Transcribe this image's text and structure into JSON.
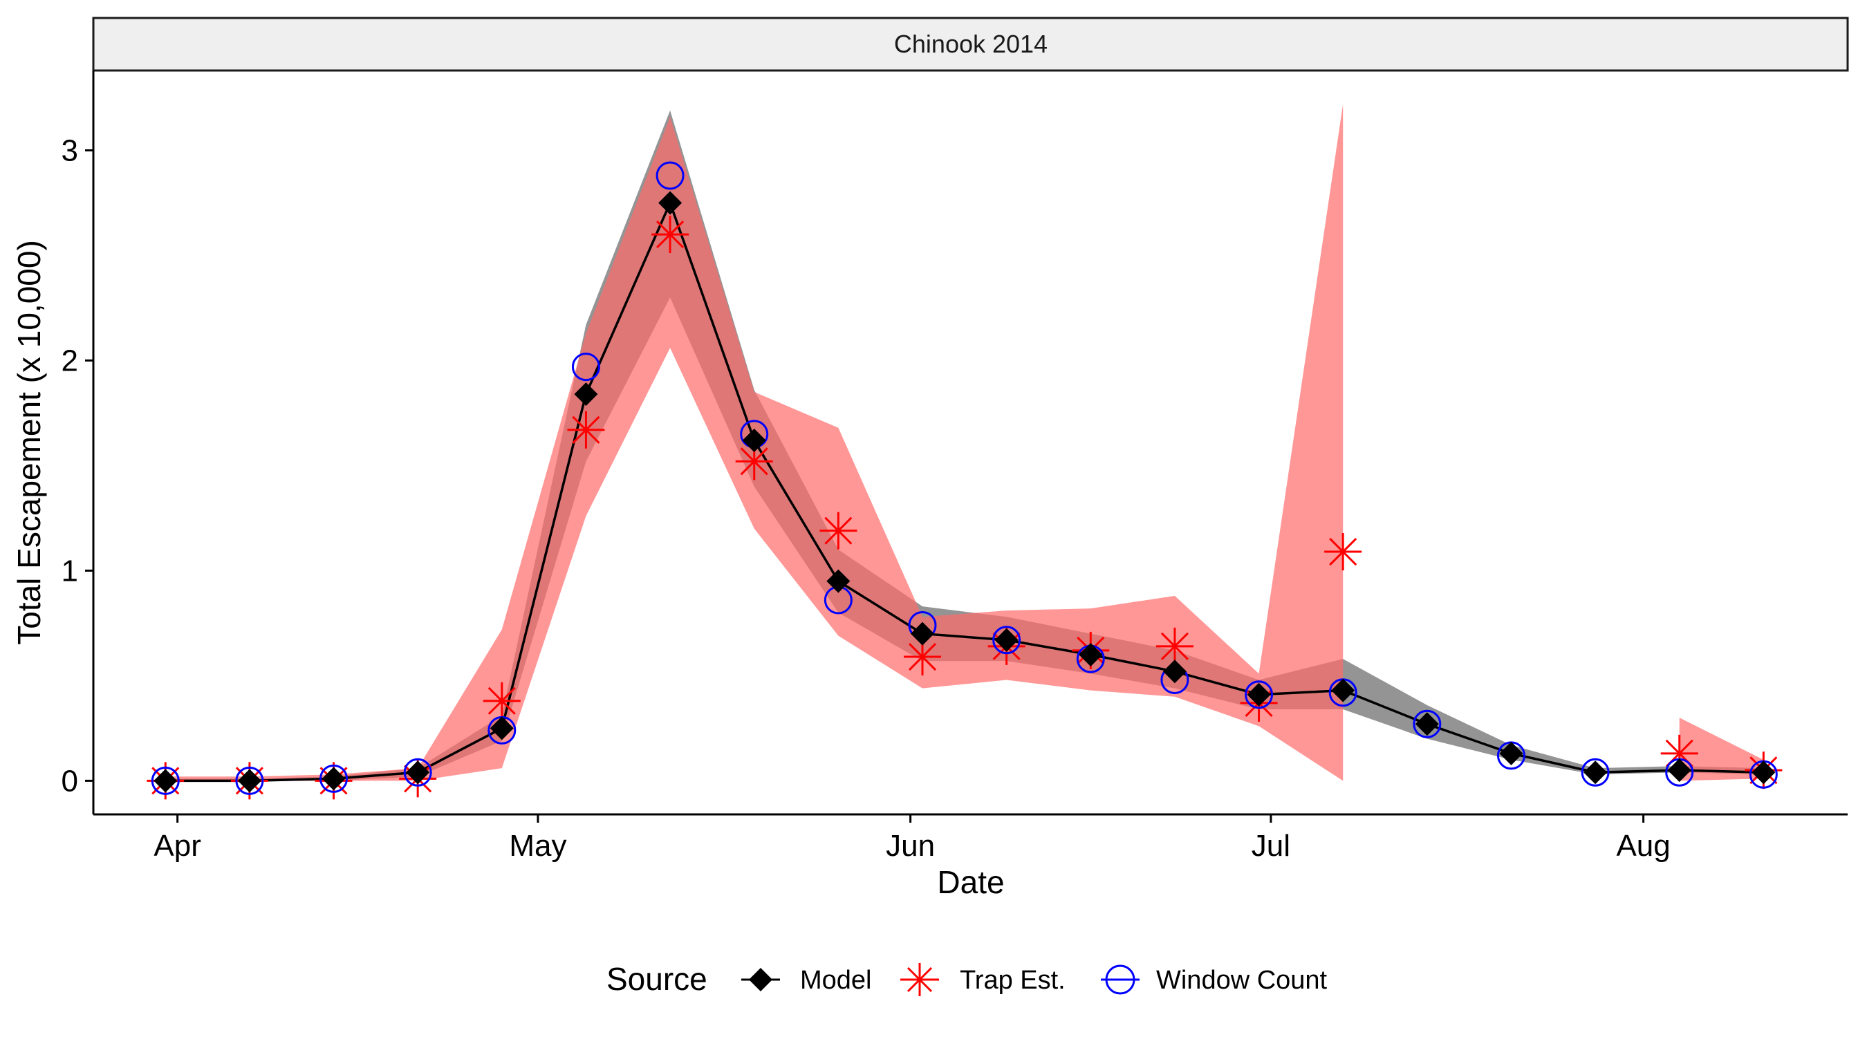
{
  "chart_data": {
    "type": "line",
    "title": "",
    "facet_label": "Chinook 2014",
    "xlabel": "Date",
    "ylabel": "Total Escapement (x 10,000)",
    "x_ticks": [
      {
        "label": "Apr",
        "date": "2014-04-01"
      },
      {
        "label": "May",
        "date": "2014-05-01"
      },
      {
        "label": "Jun",
        "date": "2014-06-01"
      },
      {
        "label": "Jul",
        "date": "2014-07-01"
      },
      {
        "label": "Aug",
        "date": "2014-08-01"
      }
    ],
    "y_ticks": [
      0,
      1,
      2,
      3
    ],
    "xlim": [
      "2014-03-25",
      "2014-08-18"
    ],
    "ylim": [
      -0.16,
      3.38
    ],
    "grid": false,
    "legend": {
      "title": "Source",
      "position": "bottom",
      "entries": [
        "Model",
        "Trap Est.",
        "Window Count"
      ]
    },
    "colors": {
      "model": "#000000",
      "model_band": "#5a5a5a",
      "trap": "#ff0000",
      "trap_band": "#ff6b6b",
      "window": "#0000ff",
      "strip_bg": "#efefef"
    },
    "dates": [
      "2014-03-31",
      "2014-04-07",
      "2014-04-14",
      "2014-04-21",
      "2014-04-28",
      "2014-05-05",
      "2014-05-12",
      "2014-05-19",
      "2014-05-26",
      "2014-06-02",
      "2014-06-09",
      "2014-06-16",
      "2014-06-23",
      "2014-06-30",
      "2014-07-07",
      "2014-07-14",
      "2014-07-21",
      "2014-07-28",
      "2014-08-04",
      "2014-08-11"
    ],
    "series": [
      {
        "name": "Model",
        "values": [
          0.0,
          0.0,
          0.01,
          0.04,
          0.25,
          1.84,
          2.75,
          1.62,
          0.95,
          0.7,
          0.67,
          0.6,
          0.52,
          0.41,
          0.43,
          0.27,
          0.13,
          0.04,
          0.05,
          0.04
        ],
        "lower": [
          0.0,
          0.0,
          0.0,
          0.02,
          0.19,
          1.52,
          2.3,
          1.4,
          0.8,
          0.57,
          0.57,
          0.51,
          0.44,
          0.34,
          0.34,
          0.2,
          0.1,
          0.03,
          0.04,
          0.03
        ],
        "upper": [
          0.01,
          0.01,
          0.02,
          0.06,
          0.31,
          2.17,
          3.19,
          1.86,
          1.1,
          0.83,
          0.78,
          0.7,
          0.62,
          0.48,
          0.58,
          0.36,
          0.17,
          0.06,
          0.07,
          0.06
        ]
      },
      {
        "name": "Trap Est.",
        "values": [
          0.0,
          0.0,
          0.0,
          0.01,
          0.38,
          1.67,
          2.6,
          1.52,
          1.19,
          0.59,
          0.64,
          0.62,
          0.64,
          0.37,
          1.09,
          null,
          null,
          null,
          0.13,
          0.05
        ],
        "lower": [
          0.0,
          0.0,
          0.0,
          0.0,
          0.06,
          1.26,
          2.06,
          1.2,
          0.69,
          0.44,
          0.48,
          0.43,
          0.4,
          0.26,
          0.0,
          null,
          null,
          null,
          0.0,
          0.01
        ],
        "upper": [
          0.02,
          0.02,
          0.03,
          0.06,
          0.72,
          2.13,
          3.16,
          1.85,
          1.68,
          0.78,
          0.81,
          0.82,
          0.88,
          0.51,
          3.22,
          null,
          null,
          null,
          0.3,
          0.1
        ]
      },
      {
        "name": "Window Count",
        "values": [
          0.0,
          0.0,
          0.01,
          0.04,
          0.24,
          1.97,
          2.88,
          1.65,
          0.86,
          0.74,
          0.67,
          0.58,
          0.48,
          0.41,
          0.42,
          0.27,
          0.12,
          0.04,
          0.04,
          0.03
        ]
      }
    ]
  }
}
